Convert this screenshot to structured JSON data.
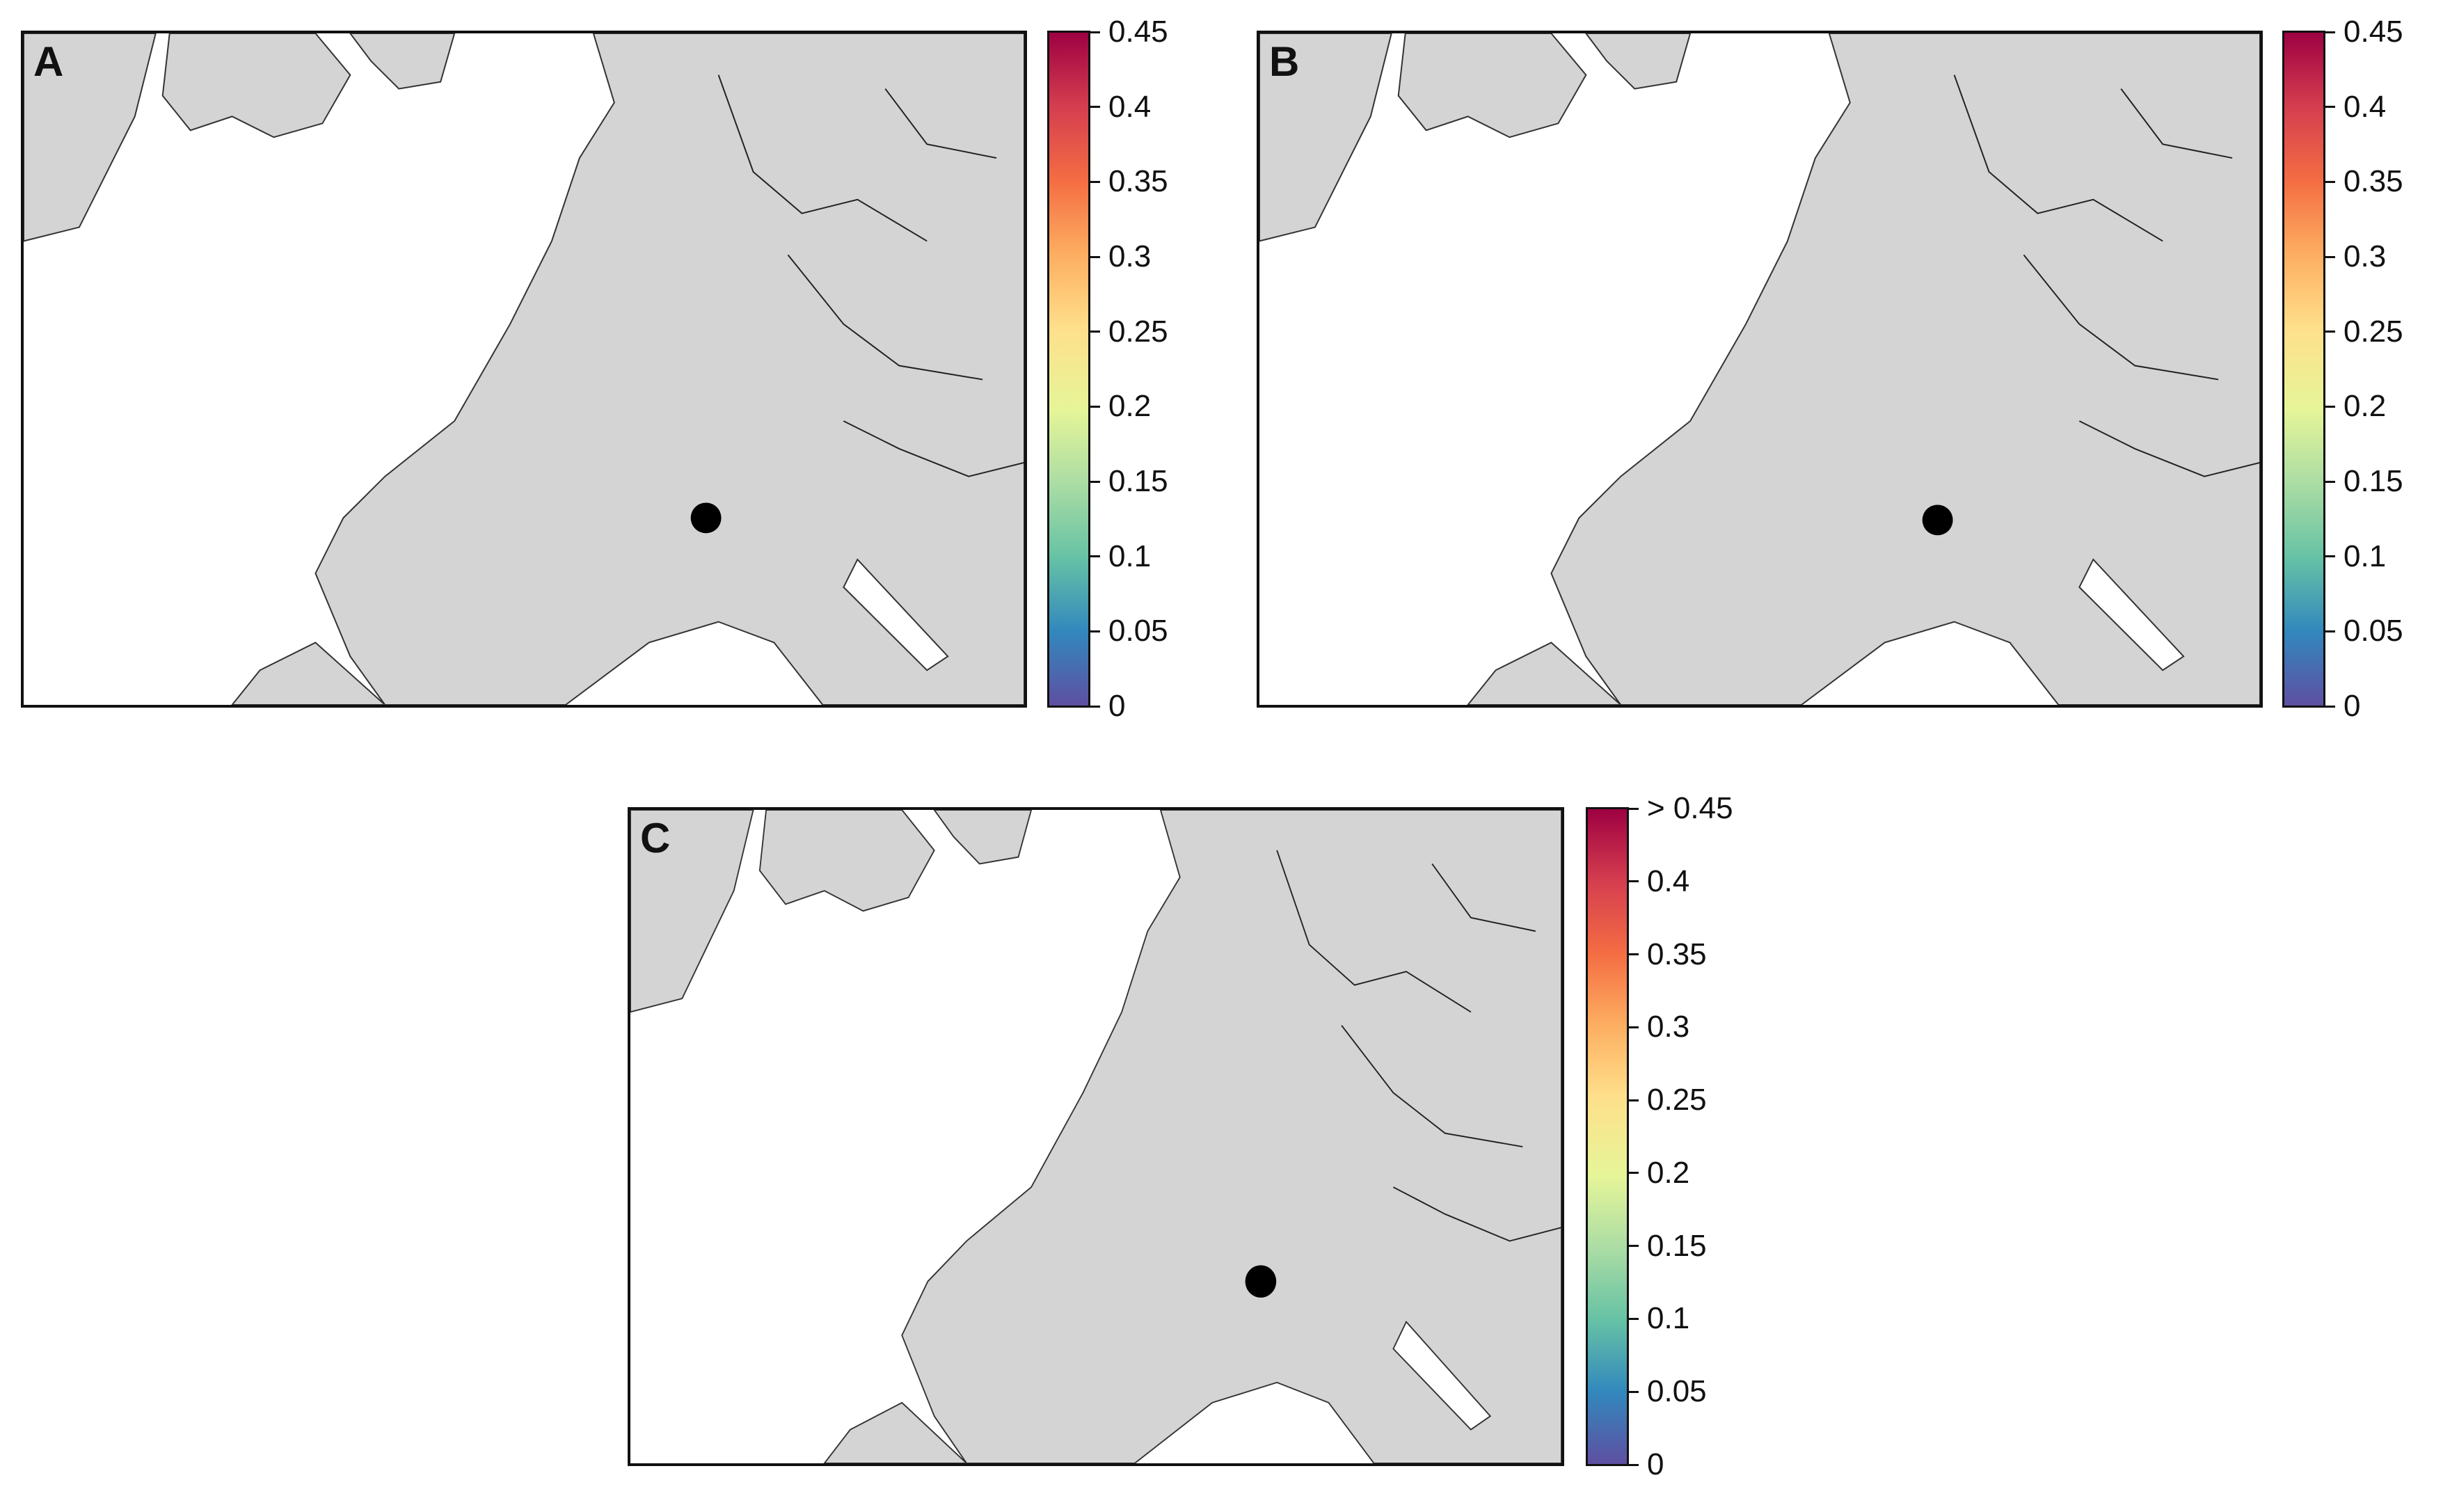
{
  "panels": [
    {
      "label": "A",
      "colorbar_ticks": [
        "0",
        "0.05",
        "0.1",
        "0.15",
        "0.2",
        "0.25",
        "0.3",
        "0.35",
        "0.4",
        "0.45"
      ]
    },
    {
      "label": "B",
      "colorbar_ticks": [
        "0",
        "0.05",
        "0.1",
        "0.15",
        "0.2",
        "0.25",
        "0.3",
        "0.35",
        "0.4",
        "0.45"
      ]
    },
    {
      "label": "C",
      "colorbar_ticks": [
        "0",
        "0.05",
        "0.1",
        "0.15",
        "0.2",
        "0.25",
        "0.3",
        "0.35",
        "0.4",
        "> 0.45"
      ]
    }
  ],
  "colors": {
    "land": "#d4d4d4",
    "sea": "#ffffff",
    "background_field": "#5a4a9e",
    "border": "#111111",
    "marker": "#000000"
  },
  "colorscale": [
    "#5e4fa2",
    "#3288bd",
    "#66c2a5",
    "#abdda4",
    "#e6f598",
    "#fee08b",
    "#fdae61",
    "#f46d43",
    "#d53e4f",
    "#9e0142"
  ]
}
